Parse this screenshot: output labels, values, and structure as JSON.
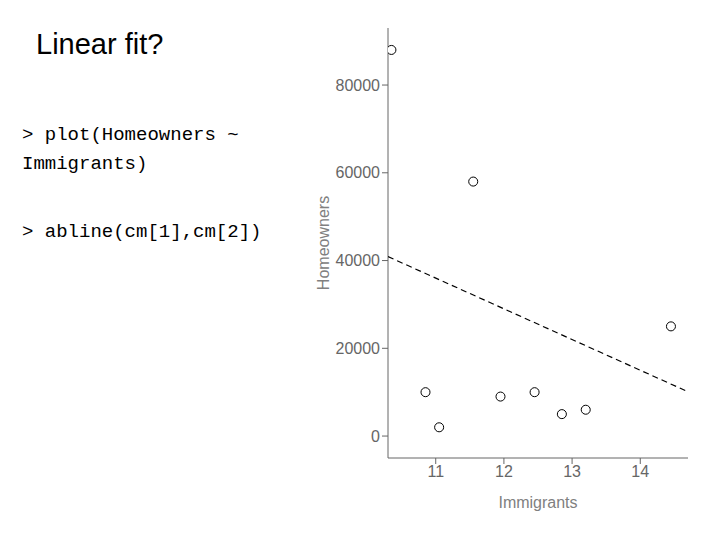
{
  "chart_data": {
    "type": "scatter",
    "title": "Linear fit?",
    "annotations": [
      "> plot(Homeowners ~\nImmigrants)",
      "> abline(cm[1],cm[2])"
    ],
    "x_label": "Immigrants",
    "y_label": "Homeowners",
    "x": [
      10.35,
      10.85,
      11.05,
      11.55,
      11.95,
      12.45,
      12.85,
      13.2,
      14.45
    ],
    "values": [
      88000,
      10000,
      2000,
      58000,
      9000,
      10000,
      5000,
      6000,
      25000
    ],
    "color": "#000000",
    "marker": "open circle",
    "xlim": [
      10.3,
      14.7
    ],
    "ylim": [
      -5000,
      93000
    ],
    "xticks": [
      11,
      12,
      13,
      14
    ],
    "yticks": [
      0,
      20000,
      40000,
      60000,
      80000
    ],
    "grid": false,
    "abline": {
      "intercept": 113000,
      "slope": -7000,
      "color": "#000000",
      "line_style": "dashed"
    }
  }
}
